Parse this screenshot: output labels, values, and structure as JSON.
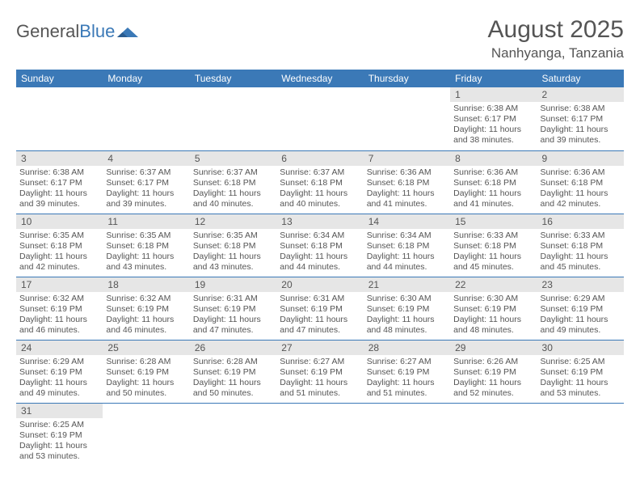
{
  "logo": {
    "general": "General",
    "blue": "Blue"
  },
  "title": "August 2025",
  "location": "Nanhyanga, Tanzania",
  "colors": {
    "accent": "#3b79b7",
    "header_bg": "#3b79b7",
    "daynum_bg": "#e6e6e6",
    "text": "#555555"
  },
  "weekdays": [
    "Sunday",
    "Monday",
    "Tuesday",
    "Wednesday",
    "Thursday",
    "Friday",
    "Saturday"
  ],
  "weeks": [
    [
      null,
      null,
      null,
      null,
      null,
      {
        "n": "1",
        "sr": "6:38 AM",
        "ss": "6:17 PM",
        "dl": "11 hours and 38 minutes."
      },
      {
        "n": "2",
        "sr": "6:38 AM",
        "ss": "6:17 PM",
        "dl": "11 hours and 39 minutes."
      }
    ],
    [
      {
        "n": "3",
        "sr": "6:38 AM",
        "ss": "6:17 PM",
        "dl": "11 hours and 39 minutes."
      },
      {
        "n": "4",
        "sr": "6:37 AM",
        "ss": "6:17 PM",
        "dl": "11 hours and 39 minutes."
      },
      {
        "n": "5",
        "sr": "6:37 AM",
        "ss": "6:18 PM",
        "dl": "11 hours and 40 minutes."
      },
      {
        "n": "6",
        "sr": "6:37 AM",
        "ss": "6:18 PM",
        "dl": "11 hours and 40 minutes."
      },
      {
        "n": "7",
        "sr": "6:36 AM",
        "ss": "6:18 PM",
        "dl": "11 hours and 41 minutes."
      },
      {
        "n": "8",
        "sr": "6:36 AM",
        "ss": "6:18 PM",
        "dl": "11 hours and 41 minutes."
      },
      {
        "n": "9",
        "sr": "6:36 AM",
        "ss": "6:18 PM",
        "dl": "11 hours and 42 minutes."
      }
    ],
    [
      {
        "n": "10",
        "sr": "6:35 AM",
        "ss": "6:18 PM",
        "dl": "11 hours and 42 minutes."
      },
      {
        "n": "11",
        "sr": "6:35 AM",
        "ss": "6:18 PM",
        "dl": "11 hours and 43 minutes."
      },
      {
        "n": "12",
        "sr": "6:35 AM",
        "ss": "6:18 PM",
        "dl": "11 hours and 43 minutes."
      },
      {
        "n": "13",
        "sr": "6:34 AM",
        "ss": "6:18 PM",
        "dl": "11 hours and 44 minutes."
      },
      {
        "n": "14",
        "sr": "6:34 AM",
        "ss": "6:18 PM",
        "dl": "11 hours and 44 minutes."
      },
      {
        "n": "15",
        "sr": "6:33 AM",
        "ss": "6:18 PM",
        "dl": "11 hours and 45 minutes."
      },
      {
        "n": "16",
        "sr": "6:33 AM",
        "ss": "6:18 PM",
        "dl": "11 hours and 45 minutes."
      }
    ],
    [
      {
        "n": "17",
        "sr": "6:32 AM",
        "ss": "6:19 PM",
        "dl": "11 hours and 46 minutes."
      },
      {
        "n": "18",
        "sr": "6:32 AM",
        "ss": "6:19 PM",
        "dl": "11 hours and 46 minutes."
      },
      {
        "n": "19",
        "sr": "6:31 AM",
        "ss": "6:19 PM",
        "dl": "11 hours and 47 minutes."
      },
      {
        "n": "20",
        "sr": "6:31 AM",
        "ss": "6:19 PM",
        "dl": "11 hours and 47 minutes."
      },
      {
        "n": "21",
        "sr": "6:30 AM",
        "ss": "6:19 PM",
        "dl": "11 hours and 48 minutes."
      },
      {
        "n": "22",
        "sr": "6:30 AM",
        "ss": "6:19 PM",
        "dl": "11 hours and 48 minutes."
      },
      {
        "n": "23",
        "sr": "6:29 AM",
        "ss": "6:19 PM",
        "dl": "11 hours and 49 minutes."
      }
    ],
    [
      {
        "n": "24",
        "sr": "6:29 AM",
        "ss": "6:19 PM",
        "dl": "11 hours and 49 minutes."
      },
      {
        "n": "25",
        "sr": "6:28 AM",
        "ss": "6:19 PM",
        "dl": "11 hours and 50 minutes."
      },
      {
        "n": "26",
        "sr": "6:28 AM",
        "ss": "6:19 PM",
        "dl": "11 hours and 50 minutes."
      },
      {
        "n": "27",
        "sr": "6:27 AM",
        "ss": "6:19 PM",
        "dl": "11 hours and 51 minutes."
      },
      {
        "n": "28",
        "sr": "6:27 AM",
        "ss": "6:19 PM",
        "dl": "11 hours and 51 minutes."
      },
      {
        "n": "29",
        "sr": "6:26 AM",
        "ss": "6:19 PM",
        "dl": "11 hours and 52 minutes."
      },
      {
        "n": "30",
        "sr": "6:25 AM",
        "ss": "6:19 PM",
        "dl": "11 hours and 53 minutes."
      }
    ],
    [
      {
        "n": "31",
        "sr": "6:25 AM",
        "ss": "6:19 PM",
        "dl": "11 hours and 53 minutes."
      },
      null,
      null,
      null,
      null,
      null,
      null
    ]
  ],
  "labels": {
    "sunrise": "Sunrise:",
    "sunset": "Sunset:",
    "daylight": "Daylight:"
  }
}
